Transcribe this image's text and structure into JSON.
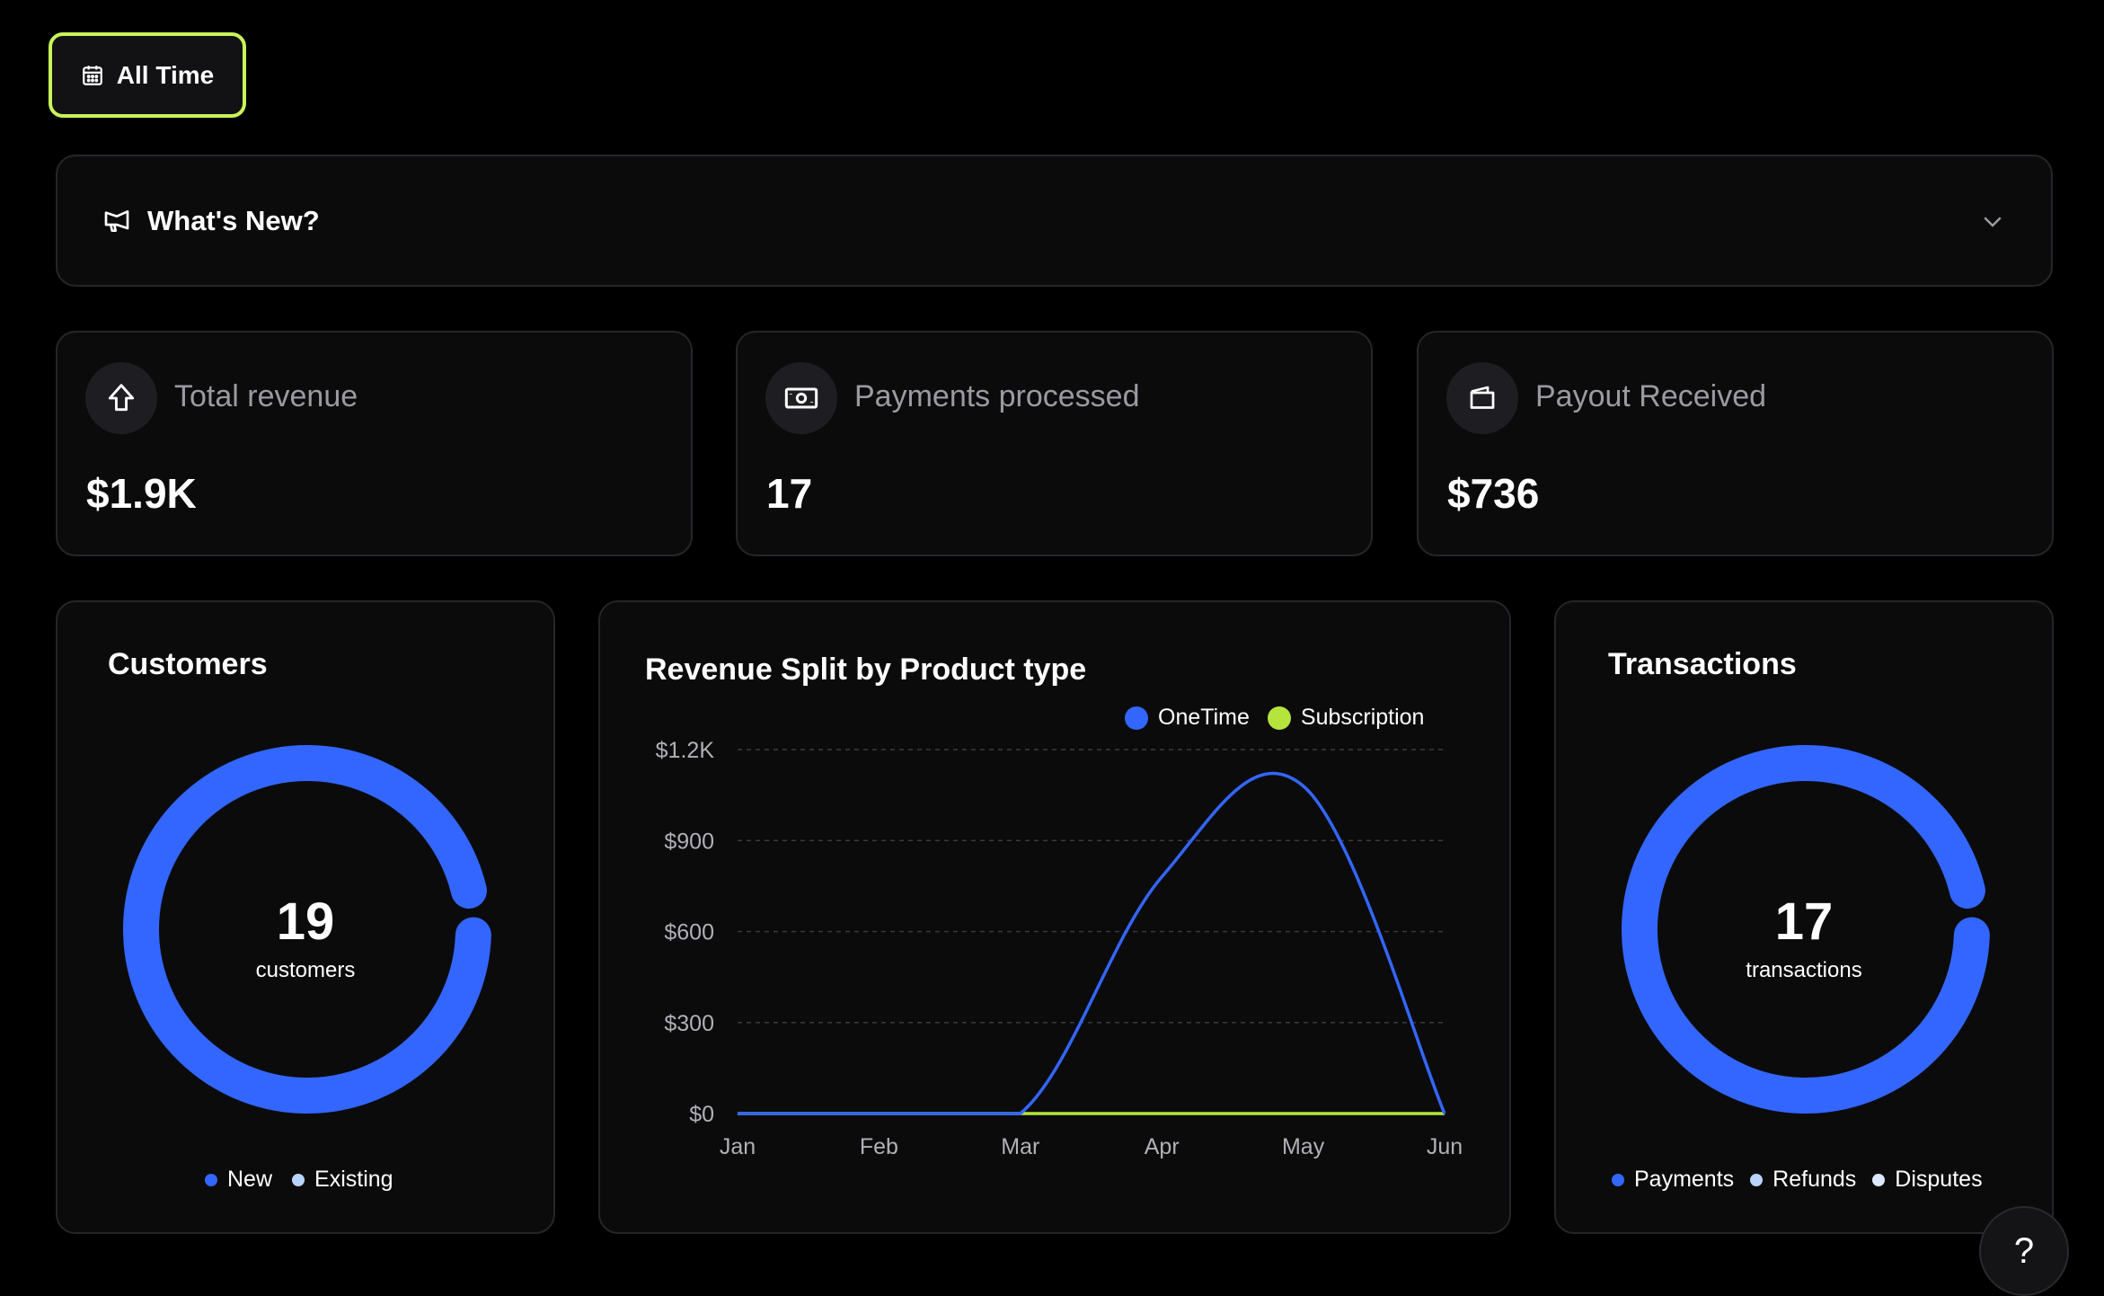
{
  "filter": {
    "label": "All Time",
    "icon": "calendar-icon",
    "accent": "#c9f35a"
  },
  "whats_new": {
    "title": "What's New?",
    "icon": "megaphone-icon",
    "toggle_icon": "chevron-down-icon"
  },
  "stats": [
    {
      "label": "Total revenue",
      "value": "$1.9K",
      "icon": "arrow-up-icon"
    },
    {
      "label": "Payments processed",
      "value": "17",
      "icon": "cash-icon"
    },
    {
      "label": "Payout Received",
      "value": "$736",
      "icon": "wallet-icon"
    }
  ],
  "customers": {
    "title": "Customers",
    "count": "19",
    "unit": "customers",
    "legend": [
      {
        "label": "New",
        "color": "#3366ff"
      },
      {
        "label": "Existing",
        "color": "#b9d3ff"
      }
    ]
  },
  "transactions": {
    "title": "Transactions",
    "count": "17",
    "unit": "transactions",
    "legend": [
      {
        "label": "Payments",
        "color": "#3366ff"
      },
      {
        "label": "Refunds",
        "color": "#b9d3ff"
      },
      {
        "label": "Disputes",
        "color": "#dbe8ff"
      }
    ]
  },
  "chart_data": {
    "type": "line",
    "title": "Revenue Split by Product type",
    "x": [
      "Jan",
      "Feb",
      "Mar",
      "Apr",
      "May",
      "Jun"
    ],
    "series": [
      {
        "name": "OneTime",
        "color": "#3366ff",
        "values": [
          0,
          0,
          0,
          780,
          1080,
          0
        ]
      },
      {
        "name": "Subscription",
        "color": "#b5e43c",
        "values": [
          0,
          0,
          0,
          0,
          0,
          0
        ]
      }
    ],
    "y_ticks": [
      "$0",
      "$300",
      "$600",
      "$900",
      "$1.2K"
    ],
    "ylim": [
      0,
      1200
    ],
    "grid": true,
    "legend_position": "top-right"
  },
  "help": {
    "label": "?"
  }
}
